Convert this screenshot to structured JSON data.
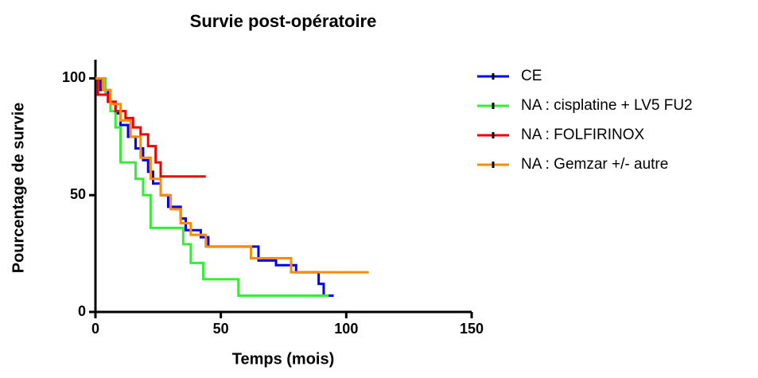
{
  "chart_data": {
    "type": "line",
    "step": true,
    "title": "Survie post-opératoire",
    "x_label": "Temps (mois)",
    "y_label": "Pourcentage de survie",
    "xlim": [
      0,
      150
    ],
    "ylim": [
      0,
      108
    ],
    "xticks": [
      0,
      50,
      100,
      150
    ],
    "yticks": [
      0,
      50,
      100
    ],
    "series": [
      {
        "name": "CE",
        "color": "#0000ee",
        "x": [
          0,
          2,
          5,
          8,
          10,
          13,
          16,
          19,
          21,
          23,
          26,
          29,
          34,
          36,
          42,
          45,
          65,
          72,
          80,
          89,
          91,
          95
        ],
        "values": [
          100,
          95,
          90,
          85,
          80,
          75,
          70,
          65,
          60,
          55,
          50,
          45,
          40,
          35,
          32,
          28,
          22,
          20,
          17,
          12,
          7,
          7
        ]
      },
      {
        "name": "NA : cisplatine + LV5 FU2",
        "color": "#33ee33",
        "x": [
          0,
          4,
          6,
          8,
          10,
          16,
          19,
          22,
          35,
          38,
          43,
          57,
          93
        ],
        "values": [
          100,
          93,
          86,
          79,
          64,
          57,
          50,
          36,
          29,
          21,
          14,
          7,
          7
        ]
      },
      {
        "name": "NA : FOLFIRINOX",
        "color": "#ee0000",
        "x": [
          0,
          1,
          5,
          8,
          12,
          15,
          18,
          21,
          24,
          26,
          44
        ],
        "values": [
          100,
          93,
          90,
          86,
          83,
          79,
          76,
          71,
          64,
          58,
          58
        ]
      },
      {
        "name": "NA : Gemzar +/- autre",
        "color": "#ff8c00",
        "x": [
          0,
          3,
          6,
          10,
          14,
          18,
          22,
          26,
          30,
          34,
          38,
          44,
          62,
          78,
          109
        ],
        "values": [
          100,
          95,
          89,
          82,
          75,
          66,
          57,
          50,
          44,
          38,
          33,
          28,
          23,
          17,
          17
        ]
      }
    ]
  }
}
